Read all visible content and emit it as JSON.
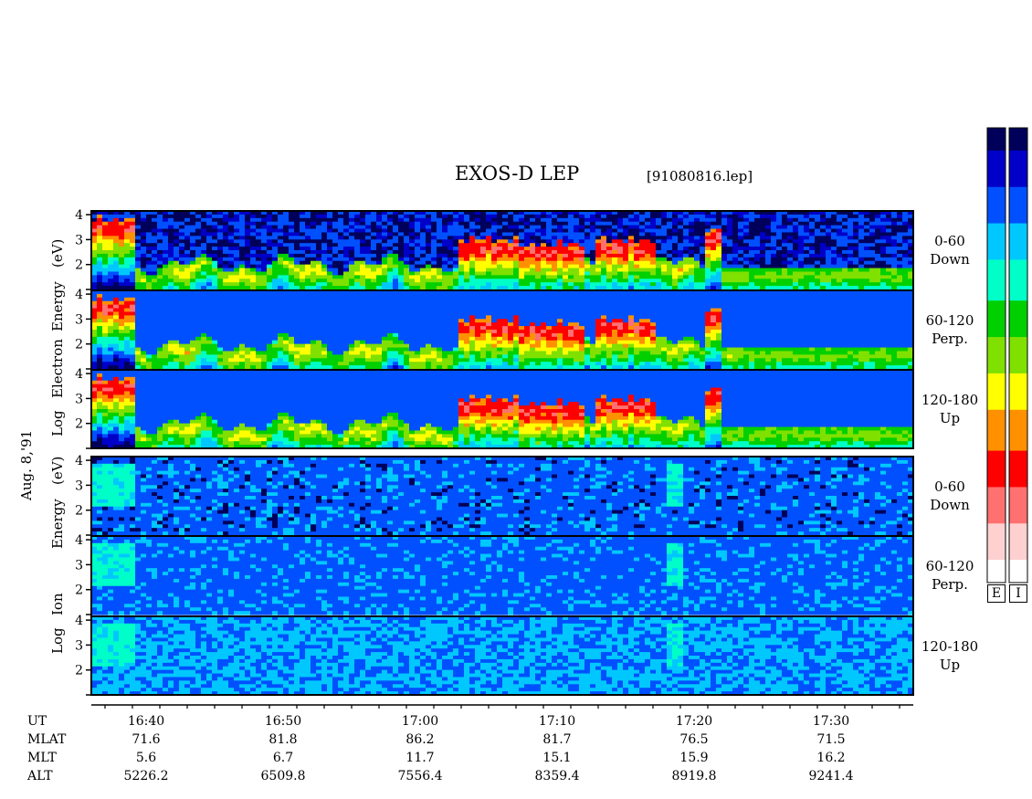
{
  "title": "EXOS-D LEP",
  "file_label": "[91080816.lep]",
  "date_label": "Aug. 8,'91",
  "electron_axis_label": [
    "Log",
    "Electron",
    "Energy",
    "(eV)"
  ],
  "ion_axis_label": [
    "Log",
    "Ion",
    "Energy",
    "(eV)"
  ],
  "pitch_labels": [
    {
      "range": "0-60",
      "dir": "Down"
    },
    {
      "range": "60-120",
      "dir": "Perp."
    },
    {
      "range": "120-180",
      "dir": "Up"
    },
    {
      "range": "0-60",
      "dir": "Down"
    },
    {
      "range": "60-120",
      "dir": "Perp."
    },
    {
      "range": "120-180",
      "dir": "Up"
    }
  ],
  "colorbar_labels": [
    "E",
    "I"
  ],
  "ephemeris": {
    "row_labels": [
      "UT",
      "MLAT",
      "MLT",
      "ALT"
    ],
    "columns": [
      {
        "UT": "16:40",
        "MLAT": "71.6",
        "MLT": "5.6",
        "ALT": "5226.2"
      },
      {
        "UT": "16:50",
        "MLAT": "81.8",
        "MLT": "6.7",
        "ALT": "6509.8"
      },
      {
        "UT": "17:00",
        "MLAT": "86.2",
        "MLT": "11.7",
        "ALT": "7556.4"
      },
      {
        "UT": "17:10",
        "MLAT": "81.7",
        "MLT": "15.1",
        "ALT": "8359.4"
      },
      {
        "UT": "17:20",
        "MLAT": "76.5",
        "MLT": "15.9",
        "ALT": "8919.8"
      },
      {
        "UT": "17:30",
        "MLAT": "71.5",
        "MLT": "16.2",
        "ALT": "9241.4"
      }
    ]
  },
  "chart_data": {
    "type": "heatmap",
    "title": "EXOS-D LEP",
    "x": {
      "label": "UT",
      "ticks": [
        "16:40",
        "16:50",
        "17:00",
        "17:10",
        "17:20",
        "17:30"
      ],
      "range": [
        "16:36",
        "17:36"
      ]
    },
    "y": {
      "label": "Log Energy (eV)",
      "ticks": [
        2,
        3,
        4
      ],
      "range": [
        1,
        4
      ]
    },
    "panels": [
      {
        "species": "Electron",
        "pitch": "0-60 Down"
      },
      {
        "species": "Electron",
        "pitch": "60-120 Perp."
      },
      {
        "species": "Electron",
        "pitch": "120-180 Up"
      },
      {
        "species": "Ion",
        "pitch": "0-60 Down"
      },
      {
        "species": "Ion",
        "pitch": "60-120 Perp."
      },
      {
        "species": "Ion",
        "pitch": "120-180 Up"
      }
    ],
    "colorscale": [
      "#00005a",
      "#0000c8",
      "#0050ff",
      "#00c8ff",
      "#00ffc8",
      "#00d000",
      "#80e000",
      "#ffff00",
      "#ff9000",
      "#ff0000",
      "#ff7070",
      "#ffd0d0",
      "#ffffff"
    ],
    "electron_features": [
      {
        "start": "16:36",
        "end": "16:39",
        "energy_top": 4.0,
        "intensity": "high"
      },
      {
        "start": "17:03",
        "end": "17:07",
        "energy_top": 3.2,
        "intensity": "high"
      },
      {
        "start": "17:07",
        "end": "17:12",
        "energy_top": 3.0,
        "intensity": "high"
      },
      {
        "start": "17:13",
        "end": "17:17",
        "energy_top": 3.2,
        "intensity": "high"
      },
      {
        "start": "17:21",
        "end": "17:22",
        "energy_top": 3.6,
        "intensity": "high"
      }
    ],
    "ion_features": [
      {
        "start": "16:36",
        "end": "16:39",
        "energy": 3.0,
        "intensity": "moderate"
      },
      {
        "start": "17:18",
        "end": "17:19",
        "energy": 3.0,
        "intensity": "moderate"
      }
    ]
  }
}
